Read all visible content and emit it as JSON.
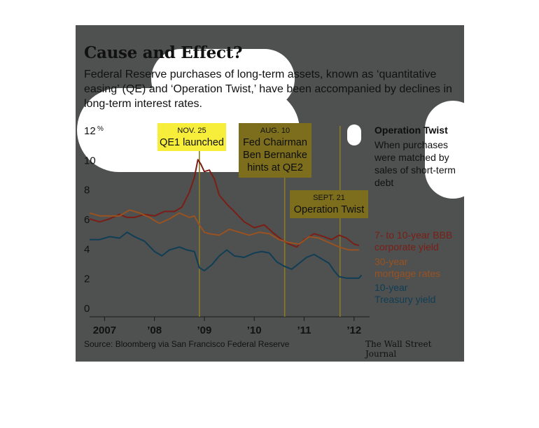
{
  "title": "Cause and Effect?",
  "subtitle": "Federal Reserve purchases of long-term assets, known as ‘quantitative easing’ (QE) and ‘Operation Twist,’ have been accompanied by declines in long-term interest rates.",
  "sidebar": {
    "heading": "Operation Twist",
    "text": "When purchases were matched by sales of short-term debt"
  },
  "source": "Source: Bloomberg via San Francisco Federal Reserve",
  "credit": "The Wall Street Journal",
  "colors": {
    "background": "#4f5050",
    "corporate": "#7a1e16",
    "mortgage": "#9a5220",
    "treasury": "#0f3e55",
    "highlight_bright": "#f7ee3c",
    "highlight_dim": "#7c6e1c"
  },
  "chart_data": {
    "type": "line",
    "ylim": [
      0,
      12
    ],
    "y_ticks": [
      "0",
      "2",
      "4",
      "6",
      "8",
      "10",
      "12"
    ],
    "y_unit": "%",
    "xlim": [
      2006.7,
      2012.2
    ],
    "x_ticks": [
      {
        "x": 2007.0,
        "label": "2007"
      },
      {
        "x": 2008.0,
        "label": "’08"
      },
      {
        "x": 2009.0,
        "label": "’09"
      },
      {
        "x": 2010.0,
        "label": "’10"
      },
      {
        "x": 2011.0,
        "label": "’11"
      },
      {
        "x": 2012.0,
        "label": "’12"
      }
    ],
    "annotations": [
      {
        "date": "NOV. 25",
        "text": "QE1 launched",
        "x": 2008.9
      },
      {
        "date": "AUG. 10",
        "text": "Fed Chairman Ben Bernanke hints at QE2",
        "x": 2010.61
      },
      {
        "date": "SEPT. 21",
        "text": "Operation Twist",
        "x": 2011.72
      }
    ],
    "series": [
      {
        "name": "7- to 10-year BBB corporate yield",
        "x": [
          2006.7,
          2006.9,
          2007.1,
          2007.3,
          2007.45,
          2007.6,
          2007.8,
          2008.0,
          2008.2,
          2008.4,
          2008.55,
          2008.7,
          2008.8,
          2008.87,
          2008.93,
          2009.0,
          2009.1,
          2009.2,
          2009.3,
          2009.45,
          2009.6,
          2009.8,
          2010.0,
          2010.2,
          2010.4,
          2010.55,
          2010.7,
          2010.85,
          2011.0,
          2011.2,
          2011.4,
          2011.55,
          2011.7,
          2011.85,
          2012.0,
          2012.1
        ],
        "values": [
          6.0,
          5.8,
          6.0,
          6.3,
          6.1,
          6.1,
          6.3,
          6.2,
          6.5,
          6.5,
          6.8,
          7.8,
          8.8,
          10.0,
          9.7,
          9.2,
          9.3,
          8.7,
          7.6,
          7.0,
          6.5,
          5.8,
          5.4,
          5.6,
          5.0,
          4.6,
          4.3,
          4.1,
          4.6,
          5.0,
          4.8,
          4.6,
          4.9,
          4.7,
          4.3,
          4.2
        ]
      },
      {
        "name": "30-year mortgage rates",
        "x": [
          2006.7,
          2006.9,
          2007.1,
          2007.3,
          2007.5,
          2007.7,
          2007.9,
          2008.1,
          2008.3,
          2008.5,
          2008.7,
          2008.8,
          2008.9,
          2009.0,
          2009.1,
          2009.3,
          2009.5,
          2009.7,
          2009.9,
          2010.1,
          2010.3,
          2010.5,
          2010.7,
          2010.9,
          2011.1,
          2011.3,
          2011.5,
          2011.7,
          2011.9,
          2012.1
        ],
        "values": [
          6.4,
          6.2,
          6.2,
          6.2,
          6.6,
          6.4,
          6.1,
          5.7,
          6.0,
          6.4,
          6.1,
          6.2,
          5.6,
          5.1,
          5.0,
          4.9,
          5.3,
          5.1,
          4.9,
          5.1,
          5.0,
          4.6,
          4.4,
          4.3,
          4.8,
          4.7,
          4.4,
          4.1,
          3.9,
          3.9
        ]
      },
      {
        "name": "10-year Treasury yield",
        "x": [
          2006.7,
          2006.9,
          2007.1,
          2007.3,
          2007.45,
          2007.6,
          2007.8,
          2008.0,
          2008.15,
          2008.3,
          2008.5,
          2008.65,
          2008.8,
          2008.9,
          2009.0,
          2009.15,
          2009.3,
          2009.45,
          2009.6,
          2009.8,
          2010.0,
          2010.15,
          2010.3,
          2010.45,
          2010.6,
          2010.75,
          2010.9,
          2011.05,
          2011.2,
          2011.35,
          2011.5,
          2011.6,
          2011.7,
          2011.85,
          2012.0,
          2012.1,
          2012.15
        ],
        "values": [
          4.6,
          4.6,
          4.8,
          4.7,
          5.1,
          4.8,
          4.5,
          3.8,
          3.5,
          3.9,
          4.1,
          3.9,
          3.8,
          2.7,
          2.5,
          2.9,
          3.5,
          3.9,
          3.5,
          3.4,
          3.7,
          3.8,
          3.7,
          3.1,
          2.8,
          2.6,
          3.0,
          3.4,
          3.6,
          3.3,
          3.0,
          2.5,
          2.1,
          2.0,
          2.0,
          2.0,
          2.2
        ]
      }
    ]
  }
}
